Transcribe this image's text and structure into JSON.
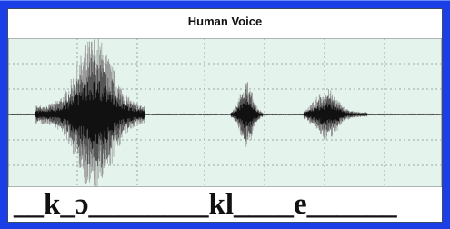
{
  "header": {
    "title": "Human Voice"
  },
  "transcript": "__k_ɔ________kl____e______"
}
